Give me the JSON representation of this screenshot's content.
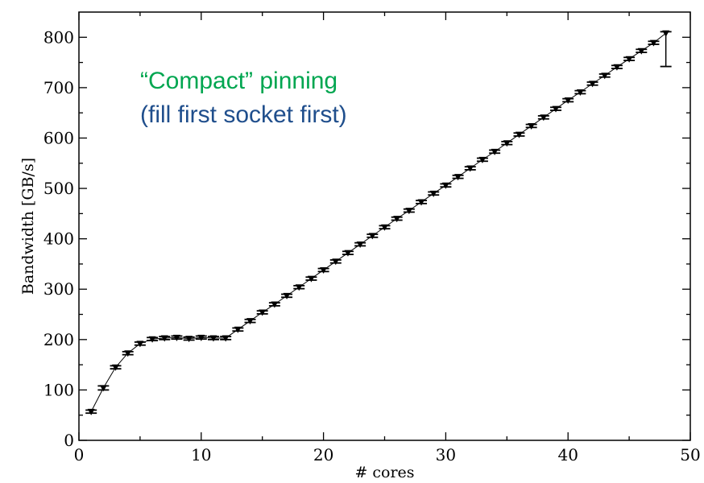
{
  "chart_data": {
    "type": "line",
    "xlabel": "# cores",
    "ylabel": "Bandwidth [GB/s]",
    "xlim": [
      0,
      50
    ],
    "ylim": [
      0,
      850
    ],
    "x_ticks": [
      0,
      10,
      20,
      30,
      40,
      50
    ],
    "y_ticks": [
      0,
      100,
      200,
      300,
      400,
      500,
      600,
      700,
      800
    ],
    "grid": false,
    "marker": "down-triangle",
    "error_bars": true,
    "annotations": [
      {
        "text": "“Compact” pinning",
        "color": "#00a650"
      },
      {
        "text": "(fill first socket first)",
        "color": "#1f4e8c"
      }
    ],
    "series": [
      {
        "x": [
          1,
          2,
          3,
          4,
          5,
          6,
          7,
          8,
          9,
          10,
          11,
          12,
          13,
          14,
          15,
          16,
          17,
          18,
          19,
          20,
          21,
          22,
          23,
          24,
          25,
          26,
          27,
          28,
          29,
          30,
          31,
          32,
          33,
          34,
          35,
          36,
          37,
          38,
          39,
          40,
          41,
          42,
          43,
          44,
          45,
          46,
          47,
          48
        ],
        "y": [
          57,
          104,
          145,
          173,
          192,
          201,
          203,
          204,
          202,
          204,
          203,
          203,
          220,
          237,
          254,
          270,
          287,
          304,
          321,
          338,
          355,
          372,
          389,
          406,
          423,
          440,
          456,
          473,
          490,
          506,
          523,
          540,
          557,
          573,
          590,
          607,
          624,
          641,
          658,
          675,
          691,
          708,
          724,
          741,
          757,
          773,
          789,
          808
        ],
        "y_err_low": [
          3,
          4,
          3,
          3,
          3,
          3,
          3,
          3,
          3,
          3,
          3,
          3,
          3,
          3,
          3,
          3,
          3,
          3,
          3,
          3,
          3,
          3,
          3,
          3,
          3,
          3,
          3,
          3,
          3,
          3,
          3,
          3,
          3,
          3,
          3,
          3,
          3,
          3,
          3,
          3,
          3,
          3,
          3,
          3,
          3,
          3,
          3,
          66
        ],
        "y_err_high": [
          3,
          4,
          3,
          3,
          3,
          3,
          3,
          3,
          3,
          3,
          3,
          3,
          3,
          3,
          3,
          3,
          3,
          3,
          3,
          3,
          3,
          3,
          3,
          3,
          3,
          3,
          3,
          3,
          3,
          3,
          3,
          3,
          3,
          3,
          3,
          3,
          3,
          3,
          3,
          3,
          3,
          3,
          3,
          3,
          3,
          3,
          3,
          3
        ]
      }
    ]
  }
}
